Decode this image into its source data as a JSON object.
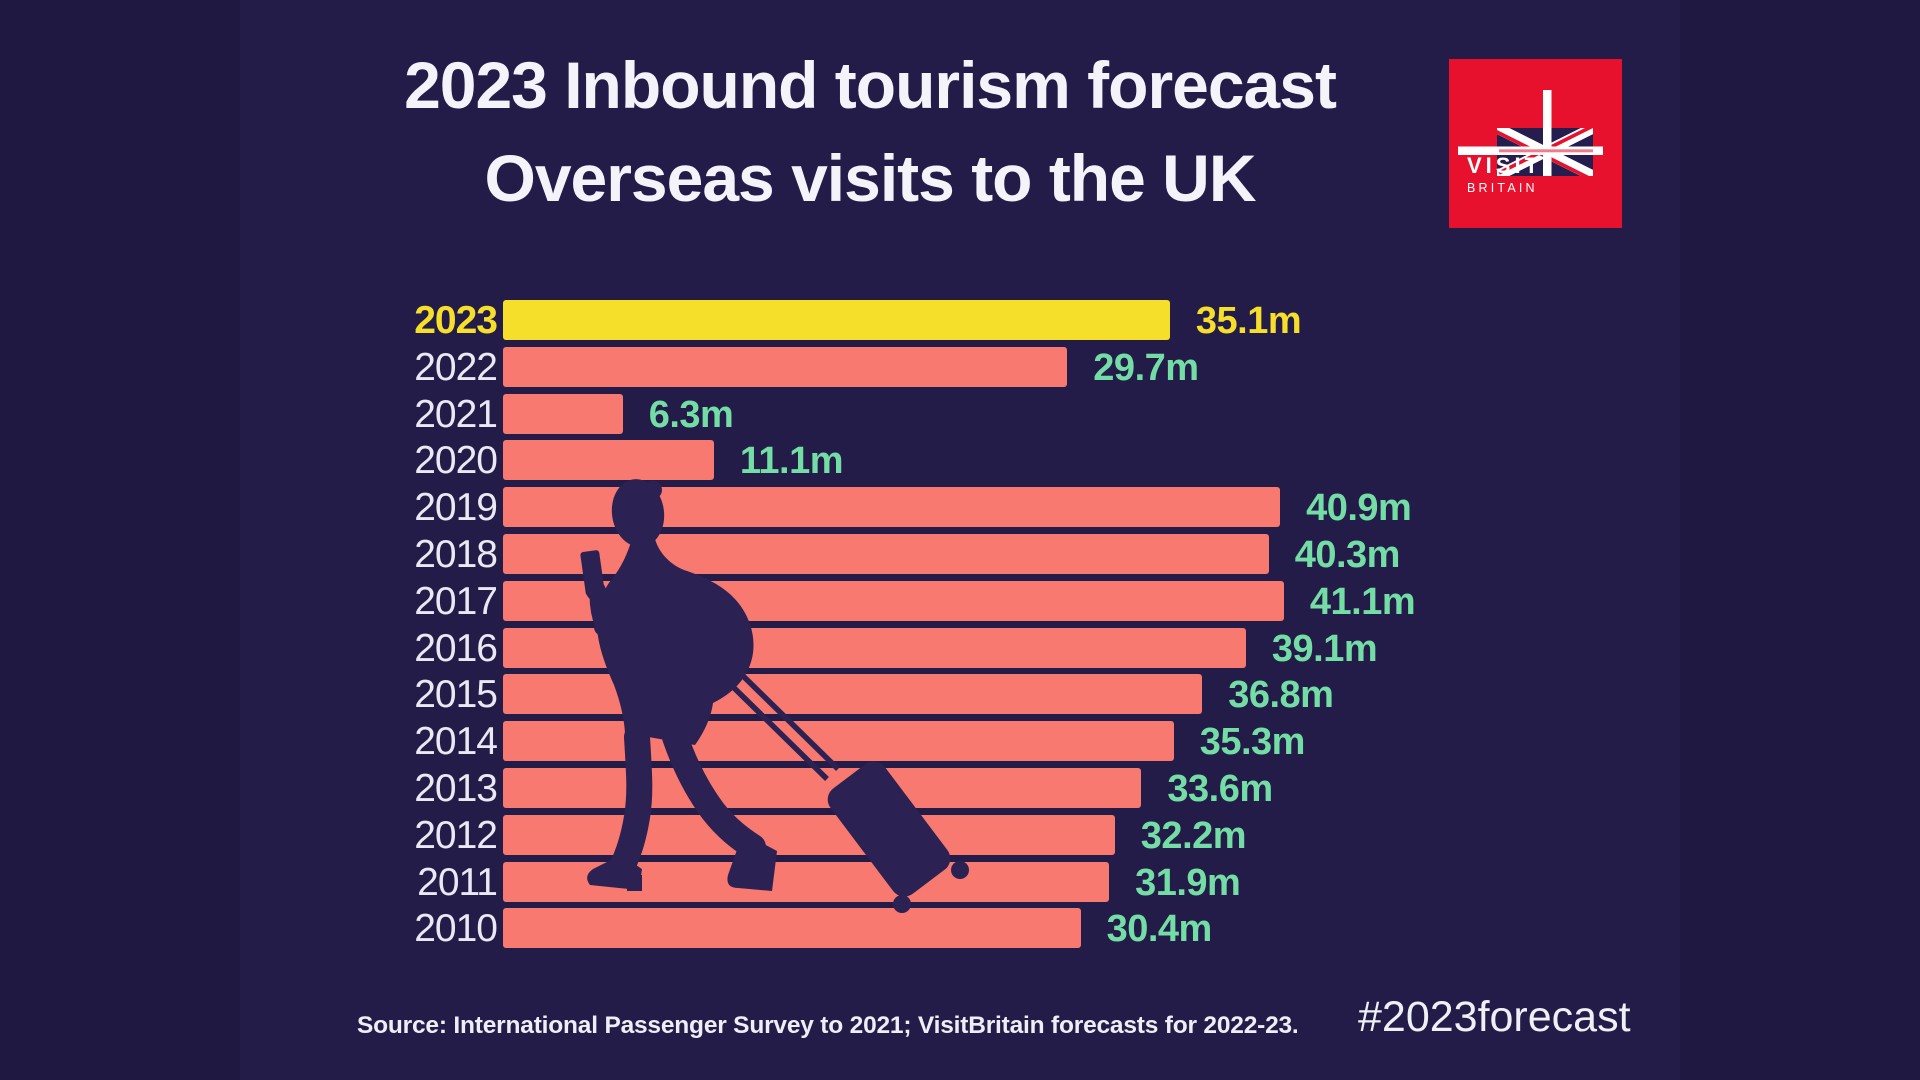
{
  "title": {
    "line1": "2023 Inbound tourism forecast",
    "line2": "Overseas visits to the UK"
  },
  "logo": {
    "line1": "VISIT",
    "line2": "BRITAIN"
  },
  "chart_data": {
    "type": "bar",
    "orientation": "horizontal",
    "title": "2023 Inbound tourism forecast — Overseas visits to the UK",
    "unit": "million overseas visits",
    "categories": [
      "2023",
      "2022",
      "2021",
      "2020",
      "2019",
      "2018",
      "2017",
      "2016",
      "2015",
      "2014",
      "2013",
      "2012",
      "2011",
      "2010"
    ],
    "values": [
      35.1,
      29.7,
      6.3,
      11.1,
      40.9,
      40.3,
      41.1,
      39.1,
      36.8,
      35.3,
      33.6,
      32.2,
      31.9,
      30.4
    ],
    "value_labels": [
      "35.1m",
      "29.7m",
      "6.3m",
      "11.1m",
      "40.9m",
      "40.3m",
      "41.1m",
      "39.1m",
      "36.8m",
      "35.3m",
      "33.6m",
      "32.2m",
      "31.9m",
      "30.4m"
    ],
    "highlight_category": "2023",
    "xlim": [
      0,
      41.1
    ],
    "grid": false,
    "legend": "none",
    "rows": [
      {
        "year": "2023",
        "value": 35.1,
        "label": "35.1m",
        "highlight": true
      },
      {
        "year": "2022",
        "value": 29.7,
        "label": "29.7m",
        "highlight": false
      },
      {
        "year": "2021",
        "value": 6.3,
        "label": "6.3m",
        "highlight": false
      },
      {
        "year": "2020",
        "value": 11.1,
        "label": "11.1m",
        "highlight": false
      },
      {
        "year": "2019",
        "value": 40.9,
        "label": "40.9m",
        "highlight": false
      },
      {
        "year": "2018",
        "value": 40.3,
        "label": "40.3m",
        "highlight": false
      },
      {
        "year": "2017",
        "value": 41.1,
        "label": "41.1m",
        "highlight": false
      },
      {
        "year": "2016",
        "value": 39.1,
        "label": "39.1m",
        "highlight": false
      },
      {
        "year": "2015",
        "value": 36.8,
        "label": "36.8m",
        "highlight": false
      },
      {
        "year": "2014",
        "value": 35.3,
        "label": "35.3m",
        "highlight": false
      },
      {
        "year": "2013",
        "value": 33.6,
        "label": "33.6m",
        "highlight": false
      },
      {
        "year": "2012",
        "value": 32.2,
        "label": "32.2m",
        "highlight": false
      },
      {
        "year": "2011",
        "value": 31.9,
        "label": "31.9m",
        "highlight": false
      },
      {
        "year": "2010",
        "value": 30.4,
        "label": "30.4m",
        "highlight": false
      }
    ]
  },
  "footer": {
    "source": "Source: International Passenger Survey to 2021; VisitBritain forecasts for 2022-23.",
    "hashtag": "#2023forecast"
  },
  "colors": {
    "background": "#1f1841",
    "canvas": "#241c48",
    "bar": "#f8796f",
    "highlight": "#f5df2b",
    "value_text": "#74dda6",
    "year_text": "#eae8f2",
    "title_text": "#f5f3fa",
    "logo_red": "#e8112d",
    "flag_navy": "#251d4e",
    "silhouette": "#2b2253"
  }
}
